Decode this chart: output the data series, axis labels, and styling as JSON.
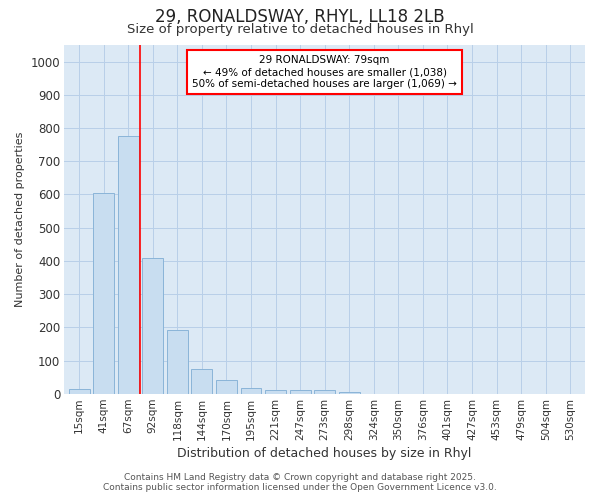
{
  "title_line1": "29, RONALDSWAY, RHYL, LL18 2LB",
  "title_line2": "Size of property relative to detached houses in Rhyl",
  "xlabel": "Distribution of detached houses by size in Rhyl",
  "ylabel": "Number of detached properties",
  "categories": [
    "15sqm",
    "41sqm",
    "67sqm",
    "92sqm",
    "118sqm",
    "144sqm",
    "170sqm",
    "195sqm",
    "221sqm",
    "247sqm",
    "273sqm",
    "298sqm",
    "324sqm",
    "350sqm",
    "376sqm",
    "401sqm",
    "427sqm",
    "453sqm",
    "479sqm",
    "504sqm",
    "530sqm"
  ],
  "values": [
    15,
    605,
    775,
    410,
    193,
    75,
    40,
    18,
    12,
    10,
    12,
    5,
    0,
    0,
    0,
    0,
    0,
    0,
    0,
    0,
    0
  ],
  "bar_color": "#c8ddf0",
  "bar_edge_color": "#8ab4d8",
  "grid_color": "#b8cfe8",
  "background_color": "#dce9f5",
  "red_line_bin": 2,
  "annotation_title": "29 RONALDSWAY: 79sqm",
  "annotation_line2": "← 49% of detached houses are smaller (1,038)",
  "annotation_line3": "50% of semi-detached houses are larger (1,069) →",
  "ylim": [
    0,
    1050
  ],
  "yticks": [
    0,
    100,
    200,
    300,
    400,
    500,
    600,
    700,
    800,
    900,
    1000
  ],
  "footer_line1": "Contains HM Land Registry data © Crown copyright and database right 2025.",
  "footer_line2": "Contains public sector information licensed under the Open Government Licence v3.0."
}
